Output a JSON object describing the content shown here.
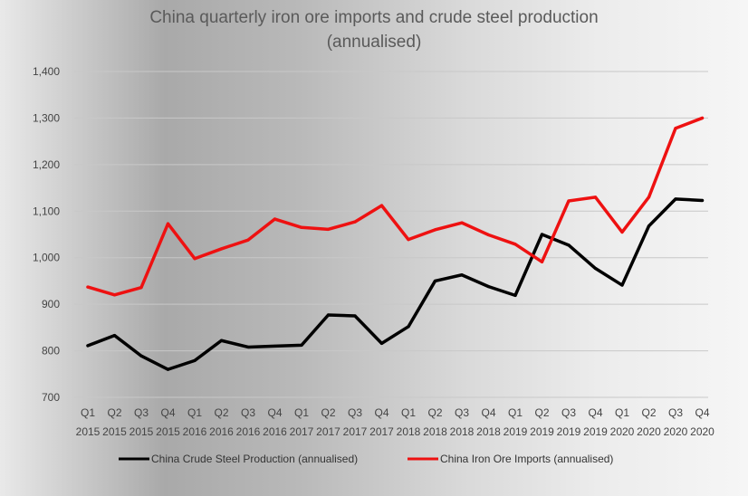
{
  "chart_data": {
    "type": "line",
    "title_line1": "China quarterly iron ore imports and crude steel production",
    "title_line2": "(annualised)",
    "xlabel": "",
    "ylabel": "",
    "ylim": [
      700,
      1400
    ],
    "yticks": [
      "700",
      "800",
      "900",
      "1,000",
      "1,100",
      "1,200",
      "1,300",
      "1,400"
    ],
    "grid": true,
    "legend_position": "bottom",
    "categories": [
      {
        "q": "Q1",
        "y": "2015"
      },
      {
        "q": "Q2",
        "y": "2015"
      },
      {
        "q": "Q3",
        "y": "2015"
      },
      {
        "q": "Q4",
        "y": "2015"
      },
      {
        "q": "Q1",
        "y": "2016"
      },
      {
        "q": "Q2",
        "y": "2016"
      },
      {
        "q": "Q3",
        "y": "2016"
      },
      {
        "q": "Q4",
        "y": "2016"
      },
      {
        "q": "Q1",
        "y": "2017"
      },
      {
        "q": "Q2",
        "y": "2017"
      },
      {
        "q": "Q3",
        "y": "2017"
      },
      {
        "q": "Q4",
        "y": "2017"
      },
      {
        "q": "Q1",
        "y": "2018"
      },
      {
        "q": "Q2",
        "y": "2018"
      },
      {
        "q": "Q3",
        "y": "2018"
      },
      {
        "q": "Q4",
        "y": "2018"
      },
      {
        "q": "Q1",
        "y": "2019"
      },
      {
        "q": "Q2",
        "y": "2019"
      },
      {
        "q": "Q3",
        "y": "2019"
      },
      {
        "q": "Q4",
        "y": "2019"
      },
      {
        "q": "Q1",
        "y": "2020"
      },
      {
        "q": "Q2",
        "y": "2020"
      },
      {
        "q": "Q3",
        "y": "2020"
      },
      {
        "q": "Q4",
        "y": "2020"
      }
    ],
    "series": [
      {
        "name": "China Crude Steel Production (annualised)",
        "color": "#000000",
        "values": [
          811,
          833,
          789,
          760,
          779,
          822,
          808,
          810,
          812,
          877,
          875,
          816,
          852,
          950,
          963,
          938,
          919,
          1050,
          1027,
          977,
          941,
          1068,
          1126,
          1123
        ]
      },
      {
        "name": "China Iron Ore Imports (annualised)",
        "color": "#ee1111",
        "values": [
          937,
          920,
          936,
          1073,
          998,
          1019,
          1038,
          1083,
          1065,
          1061,
          1077,
          1112,
          1039,
          1060,
          1075,
          1049,
          1029,
          991,
          1122,
          1130,
          1055,
          1130,
          1278,
          1300
        ]
      }
    ]
  }
}
